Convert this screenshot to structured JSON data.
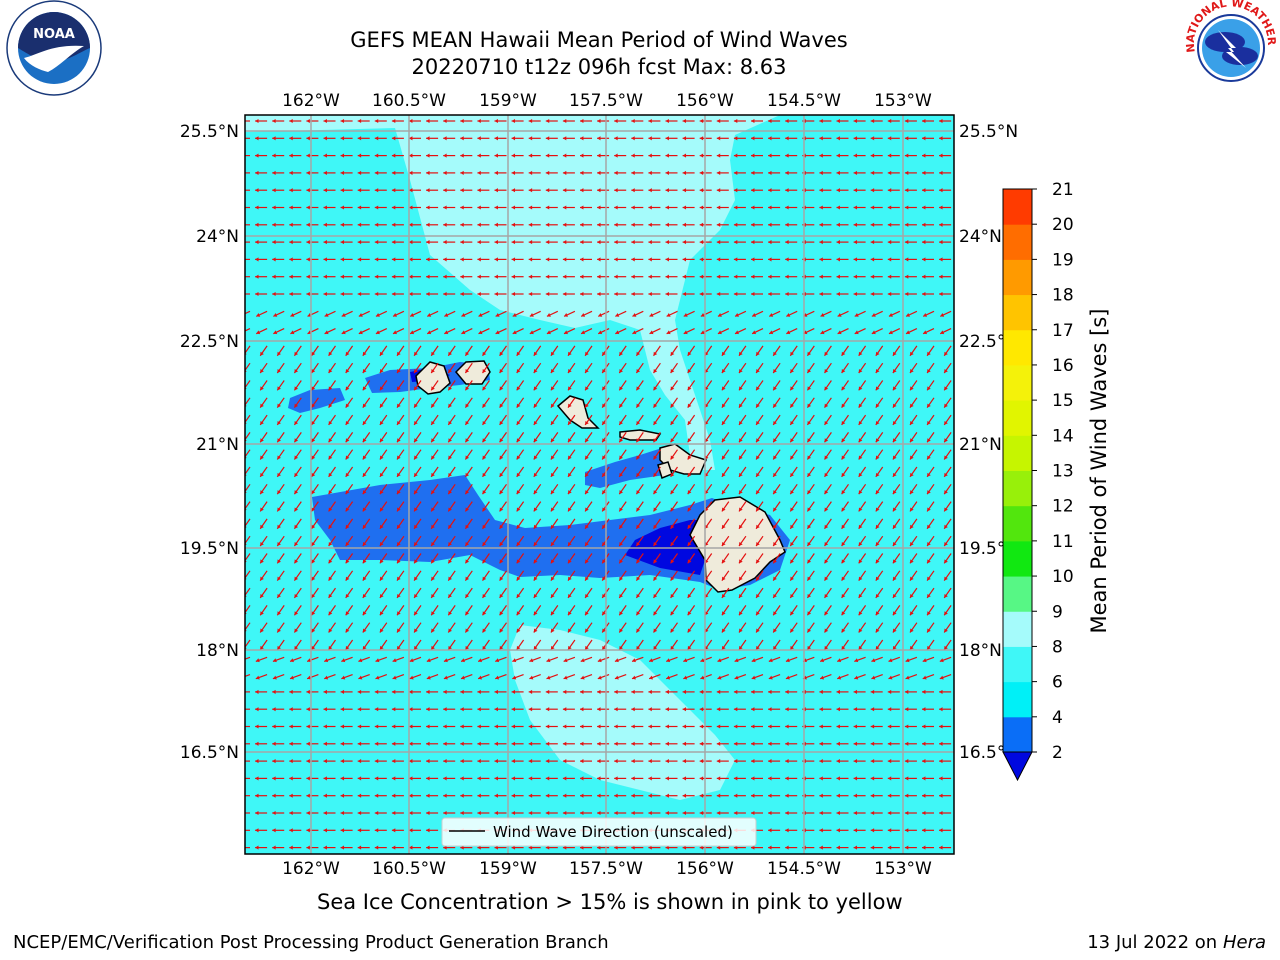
{
  "header": {
    "title_line1": "GEFS MEAN Hawaii Mean Period of Wind Waves",
    "title_line2": "20220710 t12z 096h fcst   Max: 8.63"
  },
  "map": {
    "lon_labels": [
      "162°W",
      "160.5°W",
      "159°W",
      "157.5°W",
      "156°W",
      "154.5°W",
      "153°W"
    ],
    "lat_labels": [
      "25.5°N",
      "24°N",
      "22.5°N",
      "21°N",
      "19.5°N",
      "18°N",
      "16.5°N"
    ],
    "legend_label": "Wind Wave Direction (unscaled)",
    "ocean_color": "#3ff7f7",
    "light_color": "#a5fbfb",
    "blue_color": "#1f6ff0",
    "darkblue_color": "#0008e0",
    "land_color": "#efebdb",
    "arrow_color": "#e41010"
  },
  "colorbar": {
    "label": "Mean Period of Wind Waves [s]",
    "ticks": [
      "2",
      "4",
      "6",
      "8",
      "9",
      "10",
      "11",
      "12",
      "13",
      "14",
      "15",
      "16",
      "17",
      "18",
      "19",
      "20",
      "21"
    ],
    "colors": [
      "#0a6ef7",
      "#00f0f7",
      "#3ff7f7",
      "#a5fbfb",
      "#57f785",
      "#11e811",
      "#52e60d",
      "#98f00a",
      "#c6f500",
      "#e1f500",
      "#f4f20a",
      "#ffe800",
      "#ffc400",
      "#ff9a00",
      "#ff6d00",
      "#ff3b00",
      "#ff0000"
    ],
    "under_color": "#0008e0"
  },
  "subtitle": "Sea Ice Concentration > 15% is shown in pink to yellow",
  "footer": {
    "left": "NCEP/EMC/Verification Post Processing Product Generation Branch",
    "right_date": "13 Jul 2022 on ",
    "right_host": "Hera"
  },
  "logos": {
    "left": "NOAA",
    "right": "NATIONAL WEATHER SERVICE"
  }
}
